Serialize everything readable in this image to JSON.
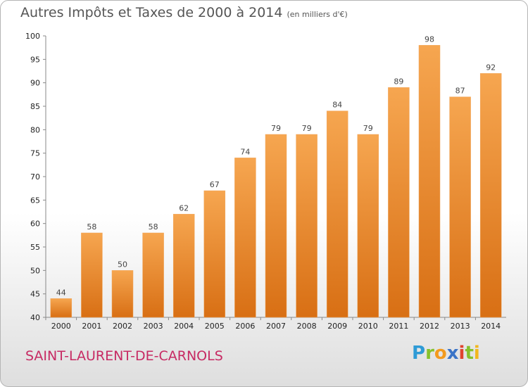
{
  "header": {
    "title": "Autres Impôts et Taxes de 2000 à 2014",
    "unit": "(en milliers d'€)"
  },
  "footer": {
    "city": "SAINT-LAURENT-DE-CARNOLS",
    "logo": "Proxiti"
  },
  "colors": {
    "bar_top": "#f6a650",
    "bar_bottom": "#d86f14",
    "city_text": "#c72a63"
  },
  "chart_data": {
    "type": "bar",
    "title": "Autres Impôts et Taxes de 2000 à 2014",
    "xlabel": "",
    "ylabel": "",
    "categories": [
      "2000",
      "2001",
      "2002",
      "2003",
      "2004",
      "2005",
      "2006",
      "2007",
      "2008",
      "2009",
      "2010",
      "2011",
      "2012",
      "2013",
      "2014"
    ],
    "values": [
      44,
      58,
      50,
      58,
      62,
      67,
      74,
      79,
      79,
      84,
      79,
      89,
      98,
      87,
      92
    ],
    "ylim": [
      40,
      100
    ],
    "yticks": [
      40,
      45,
      50,
      55,
      60,
      65,
      70,
      75,
      80,
      85,
      90,
      95,
      100
    ],
    "grid": false,
    "legend": "none"
  }
}
